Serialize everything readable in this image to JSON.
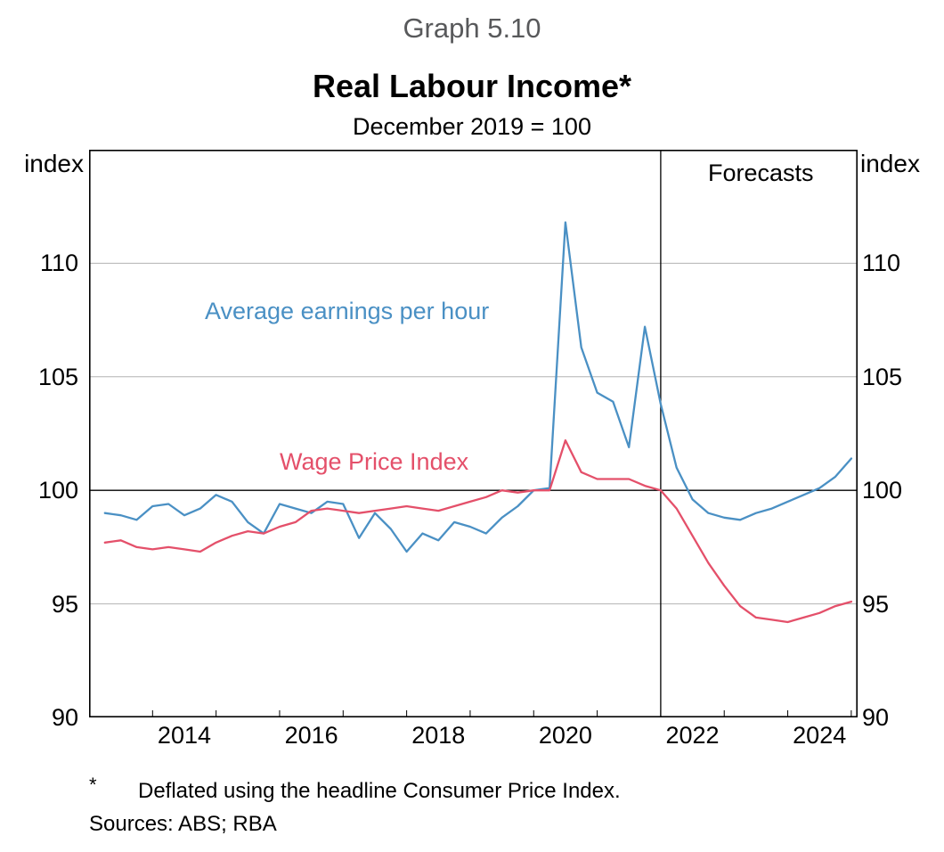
{
  "header": {
    "graph_number": "Graph 5.10",
    "title": "Real Labour Income*",
    "subtitle": "December 2019 = 100"
  },
  "axes": {
    "left_unit": "index",
    "right_unit": "index"
  },
  "labels": {
    "forecasts": "Forecasts",
    "series_blue": "Average earnings per hour",
    "series_red": "Wage Price Index"
  },
  "footnotes": {
    "asterisk": "*",
    "footnote": "Deflated using the headline Consumer Price Index.",
    "sources": "Sources: ABS; RBA"
  },
  "chart_data": {
    "type": "line",
    "title": "Real Labour Income*",
    "subtitle": "December 2019 = 100",
    "unit": "index",
    "x_range": [
      2013.0,
      2025.1
    ],
    "y_range": [
      90,
      115
    ],
    "y_ticks": [
      90,
      95,
      100,
      105,
      110
    ],
    "x_tick_labels": [
      2014,
      2016,
      2018,
      2020,
      2022,
      2024
    ],
    "reference_line_y": 100,
    "forecast_start_x": 2022.0,
    "forecast_label": "Forecasts",
    "grid_color": "#b3b3b3",
    "axis_color": "#000000",
    "legend_position": "inline-annotations",
    "x_start": 2013.25,
    "x_step": 0.25,
    "x_unit": "year (quarter-end)",
    "series": [
      {
        "name": "Average earnings per hour",
        "color": "#4a90c4",
        "values": [
          99.0,
          98.9,
          98.7,
          99.3,
          99.4,
          98.9,
          99.2,
          99.8,
          99.5,
          98.6,
          98.1,
          99.4,
          99.2,
          99.0,
          99.5,
          99.4,
          97.9,
          99.0,
          98.3,
          97.3,
          98.1,
          97.8,
          98.6,
          98.4,
          98.1,
          98.8,
          99.3,
          100.0,
          100.1,
          111.8,
          106.3,
          104.3,
          103.9,
          101.9,
          107.2,
          103.8,
          101.0,
          99.6,
          99.0,
          98.8,
          98.7,
          99.0,
          99.2,
          99.5,
          99.8,
          100.1,
          100.6,
          101.4
        ]
      },
      {
        "name": "Wage Price Index",
        "color": "#e4506a",
        "values": [
          97.7,
          97.8,
          97.5,
          97.4,
          97.5,
          97.4,
          97.3,
          97.7,
          98.0,
          98.2,
          98.1,
          98.4,
          98.6,
          99.1,
          99.2,
          99.1,
          99.0,
          99.1,
          99.2,
          99.3,
          99.2,
          99.1,
          99.3,
          99.5,
          99.7,
          100.0,
          99.9,
          100.0,
          100.0,
          102.2,
          100.8,
          100.5,
          100.5,
          100.5,
          100.2,
          100.0,
          99.2,
          98.0,
          96.8,
          95.8,
          94.9,
          94.4,
          94.3,
          94.2,
          94.4,
          94.6,
          94.9,
          95.1
        ]
      }
    ]
  }
}
